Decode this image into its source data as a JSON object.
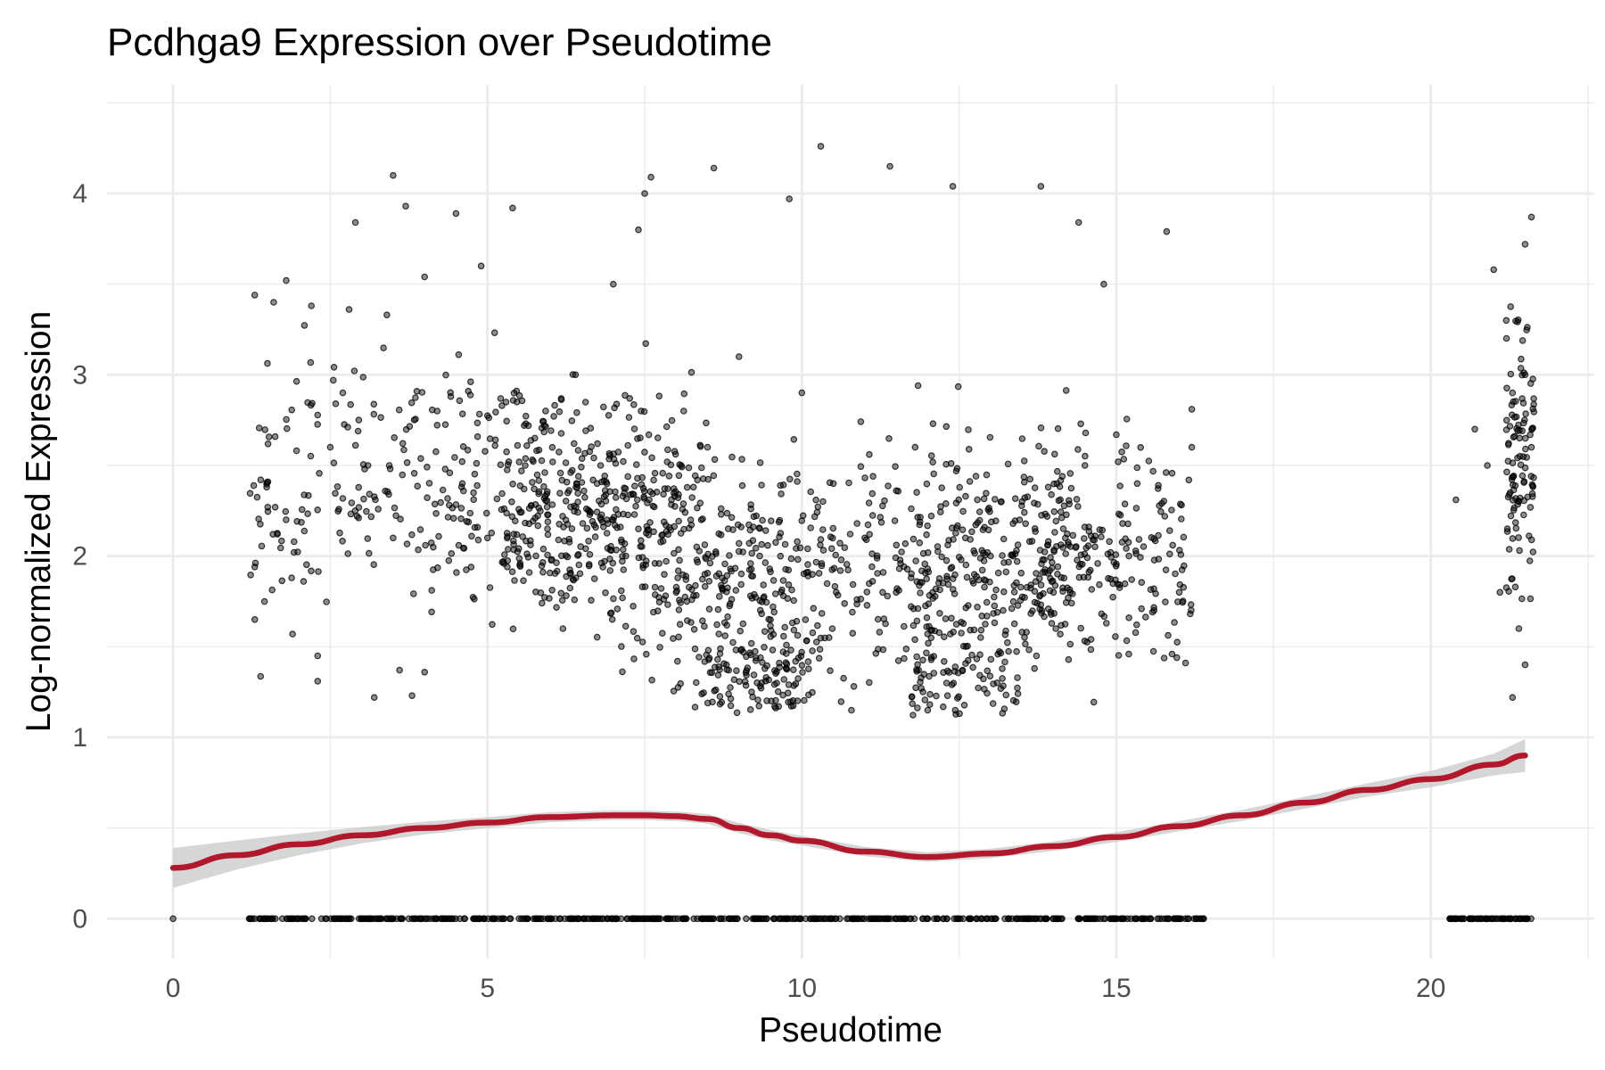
{
  "chart_data": {
    "type": "scatter",
    "title": "Pcdhga9 Expression over Pseudotime",
    "xlabel": "Pseudotime",
    "ylabel": "Log-normalized Expression",
    "xlim": [
      -1.05,
      22.6
    ],
    "ylim": [
      -0.22,
      4.6
    ],
    "x_ticks": [
      0,
      5,
      10,
      15,
      20
    ],
    "x_tick_labels": [
      "0",
      "5",
      "10",
      "15",
      "20"
    ],
    "y_ticks": [
      0,
      1,
      2,
      3,
      4
    ],
    "y_tick_labels": [
      "0",
      "1",
      "2",
      "3",
      "4"
    ],
    "grid": true,
    "legend": "none",
    "colors": {
      "points": "#000000",
      "trend": "#b2182b",
      "band": "#c8c8c8",
      "grid": "#ebebeb"
    },
    "series": [
      {
        "kind": "points",
        "sample_points": [
          [
            1.3,
            3.44
          ],
          [
            1.6,
            3.4
          ],
          [
            1.8,
            3.52
          ],
          [
            2.2,
            3.38
          ],
          [
            2.8,
            3.36
          ],
          [
            3.5,
            4.1
          ],
          [
            3.7,
            3.93
          ],
          [
            4.5,
            3.89
          ],
          [
            5.4,
            3.92
          ],
          [
            4.9,
            3.6
          ],
          [
            4.0,
            3.54
          ],
          [
            2.9,
            3.84
          ],
          [
            3.4,
            3.33
          ],
          [
            1.3,
            1.94
          ],
          [
            1.3,
            1.65
          ],
          [
            1.9,
            1.57
          ],
          [
            2.3,
            1.45
          ],
          [
            2.3,
            1.31
          ],
          [
            3.2,
            1.22
          ],
          [
            3.8,
            1.23
          ],
          [
            4.0,
            1.36
          ],
          [
            2.5,
            2.6
          ],
          [
            3.1,
            2.5
          ],
          [
            3.5,
            2.1
          ],
          [
            2.7,
            2.9
          ],
          [
            4.2,
            2.8
          ],
          [
            5.6,
            2.5
          ],
          [
            6.4,
            3.0
          ],
          [
            7.0,
            3.5
          ],
          [
            7.4,
            3.8
          ],
          [
            7.6,
            4.09
          ],
          [
            7.5,
            4.0
          ],
          [
            8.6,
            4.14
          ],
          [
            9.8,
            3.97
          ],
          [
            10.3,
            4.26
          ],
          [
            11.4,
            4.15
          ],
          [
            12.4,
            4.04
          ],
          [
            13.8,
            4.04
          ],
          [
            14.4,
            3.84
          ],
          [
            15.8,
            3.79
          ],
          [
            7.0,
            2.2
          ],
          [
            6.8,
            2.5
          ],
          [
            7.2,
            2.0
          ],
          [
            8.0,
            1.8
          ],
          [
            8.4,
            2.2
          ],
          [
            8.8,
            1.4
          ],
          [
            9.2,
            1.25
          ],
          [
            9.6,
            1.3
          ],
          [
            8.5,
            2.6
          ],
          [
            9.0,
            3.1
          ],
          [
            10.0,
            2.9
          ],
          [
            10.5,
            2.4
          ],
          [
            11.0,
            2.1
          ],
          [
            11.5,
            1.8
          ],
          [
            11.8,
            2.6
          ],
          [
            12.3,
            1.3
          ],
          [
            12.0,
            1.15
          ],
          [
            12.6,
            2.1
          ],
          [
            13.0,
            2.0
          ],
          [
            13.2,
            1.7
          ],
          [
            13.5,
            2.3
          ],
          [
            14.0,
            1.8
          ],
          [
            14.5,
            2.5
          ],
          [
            14.8,
            3.5
          ],
          [
            15.2,
            2.0
          ],
          [
            15.6,
            1.7
          ],
          [
            16.0,
            1.8
          ],
          [
            16.2,
            2.6
          ],
          [
            16.1,
            1.41
          ],
          [
            16.2,
            2.81
          ],
          [
            6.2,
            1.6
          ],
          [
            5.0,
            2.1
          ],
          [
            4.6,
            2.4
          ],
          [
            20.4,
            2.31
          ],
          [
            20.7,
            2.7
          ],
          [
            20.9,
            2.5
          ],
          [
            21.0,
            3.58
          ],
          [
            21.2,
            3.3
          ],
          [
            21.3,
            2.9
          ],
          [
            21.4,
            2.3
          ],
          [
            21.5,
            3.72
          ],
          [
            21.6,
            3.87
          ],
          [
            21.6,
            2.6
          ],
          [
            21.3,
            1.22
          ],
          [
            21.5,
            1.4
          ],
          [
            21.1,
            1.8
          ],
          [
            21.5,
            3.0
          ],
          [
            21.4,
            1.6
          ]
        ]
      },
      {
        "kind": "trend",
        "x": [
          0,
          1,
          2,
          3,
          4,
          5,
          6,
          7,
          7.5,
          8,
          8.5,
          9,
          9.5,
          10,
          11,
          12,
          13,
          14,
          15,
          16,
          17,
          18,
          19,
          20,
          21,
          21.5
        ],
        "y": [
          0.28,
          0.35,
          0.41,
          0.46,
          0.5,
          0.53,
          0.56,
          0.57,
          0.57,
          0.565,
          0.55,
          0.5,
          0.46,
          0.43,
          0.37,
          0.34,
          0.36,
          0.4,
          0.45,
          0.51,
          0.57,
          0.64,
          0.71,
          0.77,
          0.85,
          0.9
        ],
        "band_halfwidth": [
          0.11,
          0.08,
          0.06,
          0.045,
          0.035,
          0.03,
          0.028,
          0.026,
          0.026,
          0.026,
          0.027,
          0.028,
          0.028,
          0.027,
          0.026,
          0.026,
          0.026,
          0.026,
          0.027,
          0.028,
          0.03,
          0.033,
          0.037,
          0.045,
          0.06,
          0.09
        ]
      }
    ]
  }
}
